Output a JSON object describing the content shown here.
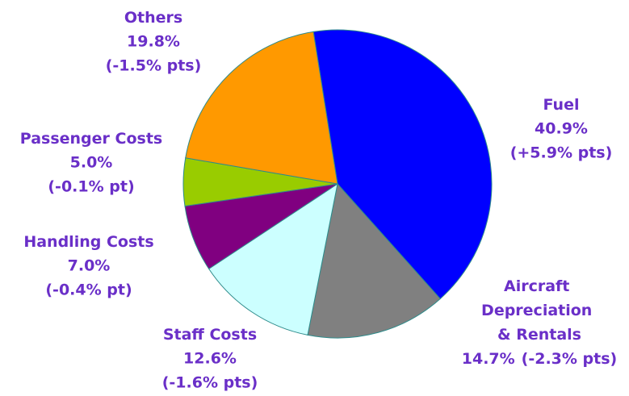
{
  "chart_data": {
    "type": "pie",
    "categories": [
      "Fuel",
      "Aircraft Depreciation & Rentals",
      "Staff Costs",
      "Handling Costs",
      "Passenger Costs",
      "Others"
    ],
    "values": [
      40.9,
      14.7,
      12.6,
      7.0,
      5.0,
      19.8
    ],
    "value_labels": [
      "40.9%",
      "14.7%",
      "12.6%",
      "7.0%",
      "5.0%",
      "19.8%"
    ],
    "change_labels": [
      "(+5.9% pts)",
      "(-2.3% pts)",
      "(-1.6% pts)",
      "(-0.4% pt)",
      "(-0.1% pt)",
      "(-1.5% pts)"
    ],
    "colors": [
      "#0000ff",
      "#808080",
      "#ccffff",
      "#800080",
      "#99cc00",
      "#ff9900"
    ]
  }
}
